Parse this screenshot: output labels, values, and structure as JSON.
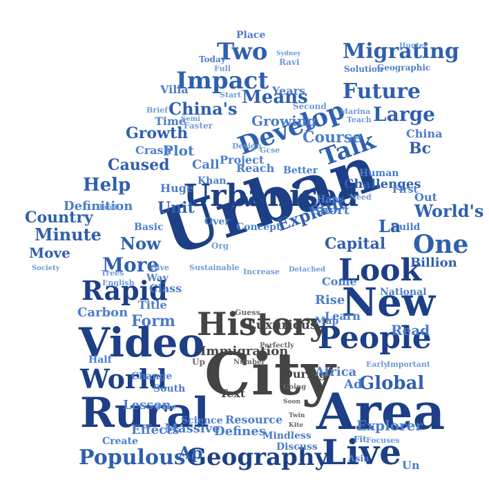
{
  "colors": {
    "navy": "#1d3f86",
    "blue": "#2f5fae",
    "mid_blue": "#4a7ccb",
    "light_blue": "#6f9ad6",
    "gray": "#444444",
    "background": "#ffffff"
  },
  "words": {
    "urban": "Urban",
    "city": "City",
    "history": "History",
    "area": "Area",
    "rural": "Rural",
    "video": "Video",
    "new": "New",
    "people": "People",
    "urbanised": "Urbanised",
    "look": "Look",
    "live": "Live",
    "geography": "Geography",
    "populous": "Populous",
    "world": "World",
    "rapid": "Rapid",
    "develop": "Develop",
    "impact": "Impact",
    "two": "Two",
    "migrating": "Migrating",
    "future": "Future",
    "large": "Large",
    "talk": "Talk",
    "one": "One",
    "worlds": "World's",
    "global": "Global",
    "more": "More",
    "minute": "Minute",
    "country": "Country",
    "move": "Move",
    "help": "Help",
    "caused": "Caused",
    "growth": "Growth",
    "chinas": "China's",
    "growing": "Growing",
    "means": "Means",
    "course": "Course",
    "challenges": "Challenges",
    "capital": "Capital",
    "billion": "Billion",
    "explain": "Explain",
    "now": "Now",
    "definition": "Definition",
    "unit": "Unit",
    "huge": "Huge",
    "class": "Class",
    "carbon": "Carbon",
    "form": "Form",
    "lesson": "Lesson",
    "effects": "Effects",
    "create": "Create",
    "massive": "Massive",
    "defines": "Defines",
    "resource": "Resource",
    "science": "Science",
    "immigration": "Immigration",
    "luxurious": "Luxurious",
    "during": "During",
    "text": "Text",
    "half": "Half",
    "change": "Change",
    "title": "Title",
    "plot": "Plot",
    "crash": "Crash",
    "time": "Time",
    "project": "Project",
    "call": "Call",
    "khan": "Khan",
    "reach": "Reach",
    "over": "Over",
    "concept": "Concept",
    "better": "Better",
    "hans": "Hans",
    "short": "Short",
    "rise": "Rise",
    "come": "Come",
    "learn": "Learn",
    "map": "Map",
    "read": "Read",
    "national": "National",
    "africa": "Africa",
    "explorer": "Explorer",
    "discuss": "Discuss",
    "mindless": "Mindless",
    "bc": "Bc",
    "china": "China",
    "human": "Human",
    "out": "Out",
    "first": "First",
    "build": "Build",
    "years": "Years",
    "solution": "Solution",
    "geographic": "Geographic",
    "place": "Place",
    "today": "Today",
    "villa": "Villa",
    "ap": "Ap",
    "un": "Un",
    "la": "La",
    "ad": "Ad",
    "guess": "Guess",
    "up": "Up",
    "number": "Number",
    "perfectly": "Perfectly",
    "going": "Going",
    "soon": "Soon",
    "kite": "Kite",
    "twin": "Twin",
    "basic": "Basic",
    "sustainable": "Sustainable",
    "increase": "Increase",
    "detached": "Detached",
    "south": "South",
    "way": "Way",
    "give": "Give",
    "trees": "Trees",
    "english": "English",
    "pace": "Pace",
    "asia": "Asia",
    "fit": "Fit",
    "focuses": "Focuses",
    "early": "Early",
    "important": "Important",
    "gcse": "Gcse",
    "design": "Design",
    "second": "Second",
    "faster": "Faster",
    "semi": "Semi",
    "brief": "Brief",
    "start": "Start",
    "full": "Full",
    "ravi": "Ravi",
    "hunter": "Hunter",
    "marina": "Marina",
    "teach": "Teach",
    "need": "Need",
    "sydney": "Sydney",
    "org": "Org",
    "tamil": "Tamil",
    "society": "Society"
  }
}
